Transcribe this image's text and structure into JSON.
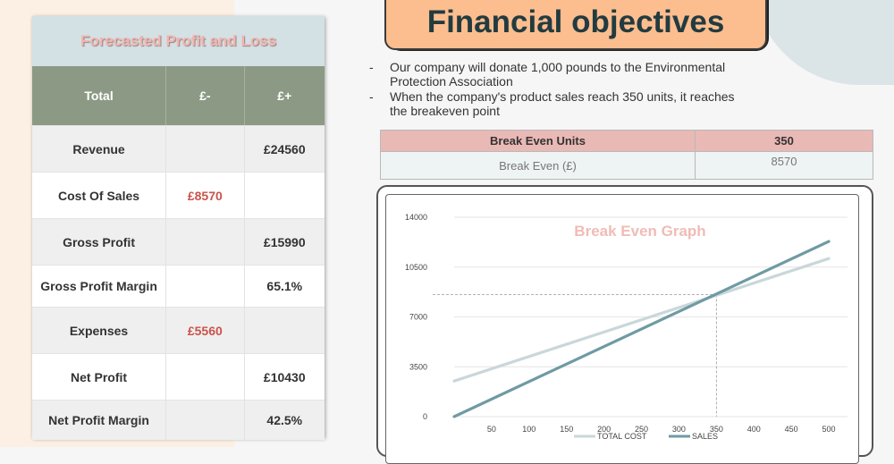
{
  "profit_loss": {
    "title": "Forecasted Profit and Loss",
    "headers": [
      "Total",
      "£-",
      "£+"
    ],
    "rows": [
      {
        "label": "Revenue",
        "minus": "",
        "plus": "£24560"
      },
      {
        "label": "Cost Of Sales",
        "minus": "£8570",
        "plus": ""
      },
      {
        "label": "Gross Profit",
        "minus": "",
        "plus": "£15990"
      },
      {
        "label": "Gross Profit Margin",
        "minus": "",
        "plus": "65.1%"
      },
      {
        "label": "Expenses",
        "minus": "£5560",
        "plus": ""
      },
      {
        "label": "Net Profit",
        "minus": "",
        "plus": "£10430"
      },
      {
        "label": "Net Profit Margin",
        "minus": "",
        "plus": "42.5%"
      }
    ]
  },
  "objectives": {
    "title": "Financial objectives",
    "bullets": [
      "Our company will donate 1,000 pounds to the Environmental Protection Association",
      "When the company's product sales reach 350 units, it reaches the breakeven point"
    ]
  },
  "break_even_table": {
    "units_label": "Break Even Units",
    "units_value": "350",
    "amount_label": "Break Even (£)",
    "amount_value": "8570"
  },
  "chart_data": {
    "type": "line",
    "title": "Break Even Graph",
    "x_ticks": [
      "50",
      "100",
      "150",
      "200",
      "250",
      "300",
      "350",
      "400",
      "450",
      "500"
    ],
    "y_ticks": [
      "0",
      "3500",
      "7000",
      "10500",
      "14000"
    ],
    "xlim": [
      0,
      525
    ],
    "ylim": [
      0,
      14000
    ],
    "series": [
      {
        "name": "TOTAL COST",
        "color": "#c9d7db",
        "x": [
          0,
          500
        ],
        "y": [
          2500,
          11100
        ]
      },
      {
        "name": "SALES",
        "color": "#6f9aa3",
        "x": [
          0,
          500
        ],
        "y": [
          0,
          12300
        ]
      }
    ],
    "reference": {
      "x": 350,
      "y": 8570
    }
  }
}
